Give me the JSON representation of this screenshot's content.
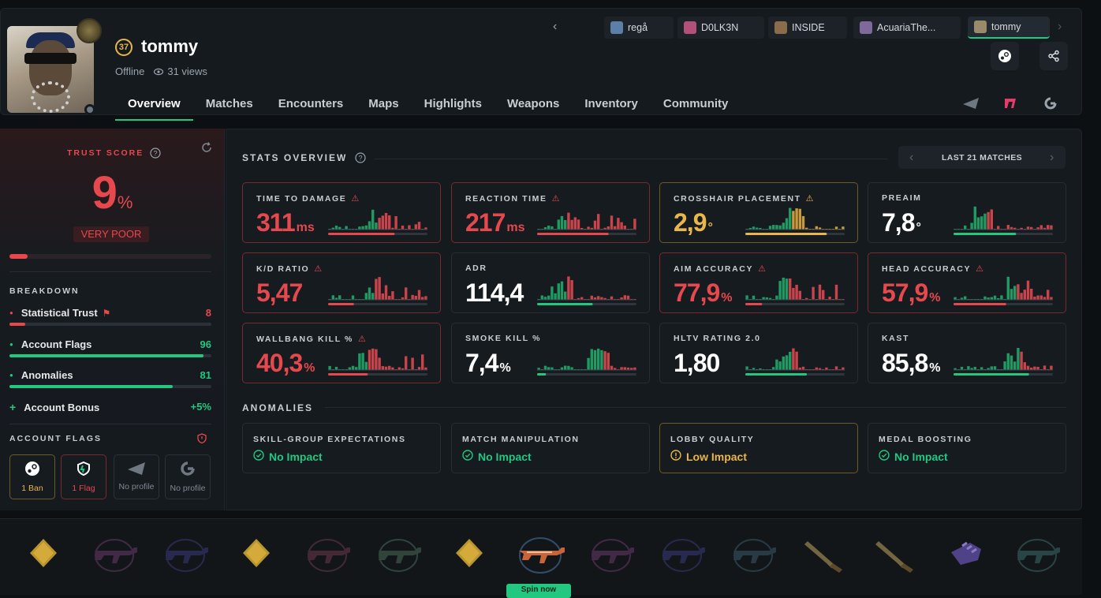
{
  "profile": {
    "name": "tommy",
    "level": "37",
    "status": "Offline",
    "views": "31 views"
  },
  "recent_profiles": [
    {
      "name": "regå",
      "color": "#5b7fa6"
    },
    {
      "name": "D0LK3N",
      "color": "#b2507a"
    },
    {
      "name": "INSIDE",
      "color": "#8a6b4a"
    },
    {
      "name": "AcuariaThe...",
      "color": "#7d6a9a"
    },
    {
      "name": "tommy",
      "color": "#9a8a6a"
    }
  ],
  "tabs": [
    "Overview",
    "Matches",
    "Encounters",
    "Maps",
    "Highlights",
    "Weapons",
    "Inventory",
    "Community"
  ],
  "active_tab": "Overview",
  "trust": {
    "label": "TRUST SCORE",
    "value": "9",
    "unit": "%",
    "rating": "VERY POOR",
    "fill_fraction": 0.09
  },
  "breakdown": {
    "title": "BREAKDOWN",
    "items": [
      {
        "label": "Statistical Trust",
        "value": "8",
        "fraction": 0.08,
        "color": "#e5484d",
        "flag": true
      },
      {
        "label": "Account Flags",
        "value": "96",
        "fraction": 0.96,
        "color": "#22c780"
      },
      {
        "label": "Anomalies",
        "value": "81",
        "fraction": 0.81,
        "color": "#22c780"
      },
      {
        "label": "Account Bonus",
        "value": "+5%",
        "color": "#22c780"
      }
    ]
  },
  "account_flags": {
    "title": "ACCOUNT FLAGS",
    "items": [
      {
        "label": "1 Ban",
        "icon": "steam-icon",
        "color": "#e8b64a",
        "border": "#6f5a24"
      },
      {
        "label": "1 Flag",
        "icon": "faceit-shield-icon",
        "color": "#e5484d",
        "border": "#7a2a2e"
      },
      {
        "label": "No profile",
        "icon": "esea-icon",
        "color": "#7f8891",
        "border": "#2a3239"
      },
      {
        "label": "No profile",
        "icon": "renown-icon",
        "color": "#7f8891",
        "border": "#2a3239"
      }
    ]
  },
  "stats": {
    "title": "STATS OVERVIEW",
    "range": "LAST 21 MATCHES",
    "cards": [
      {
        "label": "TIME TO DAMAGE",
        "value": "311",
        "unit": "ms",
        "color": "#e5484d",
        "state": "red",
        "warn": true,
        "bar": 0.67
      },
      {
        "label": "REACTION TIME",
        "value": "217",
        "unit": "ms",
        "color": "#e5484d",
        "state": "red",
        "warn": true,
        "bar": 0.72
      },
      {
        "label": "CROSSHAIR PLACEMENT",
        "value": "2,9",
        "unit": "°",
        "color": "#e8b64a",
        "state": "yellow",
        "warn": true,
        "bar": 0.82
      },
      {
        "label": "PREAIM",
        "value": "7,8",
        "unit": "°",
        "color": "#ffffff",
        "state": "normal",
        "warn": false,
        "bar": 0.63
      },
      {
        "label": "K/D RATIO",
        "value": "5,47",
        "unit": "",
        "color": "#e5484d",
        "state": "red",
        "warn": true,
        "bar": 0.26
      },
      {
        "label": "ADR",
        "value": "114,4",
        "unit": "",
        "color": "#ffffff",
        "state": "normal",
        "warn": false,
        "bar": 0.56
      },
      {
        "label": "AIM ACCURACY",
        "value": "77,9",
        "unit": "%",
        "color": "#e5484d",
        "state": "red",
        "warn": true,
        "bar": 0.17
      },
      {
        "label": "HEAD ACCURACY",
        "value": "57,9",
        "unit": "%",
        "color": "#e5484d",
        "state": "red",
        "warn": true,
        "bar": 0.53
      },
      {
        "label": "WALLBANG KILL %",
        "value": "40,3",
        "unit": "%",
        "color": "#e5484d",
        "state": "red",
        "warn": true,
        "bar": 0.4
      },
      {
        "label": "SMOKE KILL %",
        "value": "7,4",
        "unit": "%",
        "color": "#ffffff",
        "state": "normal",
        "warn": false,
        "bar": 0.09
      },
      {
        "label": "HLTV RATING 2.0",
        "value": "1,80",
        "unit": "",
        "color": "#ffffff",
        "state": "normal",
        "warn": false,
        "bar": 0.62
      },
      {
        "label": "KAST",
        "value": "85,8",
        "unit": "%",
        "color": "#ffffff",
        "state": "normal",
        "warn": false,
        "bar": 0.76
      }
    ]
  },
  "anomalies": {
    "title": "ANOMALIES",
    "items": [
      {
        "label": "SKILL-GROUP EXPECTATIONS",
        "value": "No Impact",
        "color": "#22c780",
        "state": "normal"
      },
      {
        "label": "MATCH MANIPULATION",
        "value": "No Impact",
        "color": "#22c780",
        "state": "normal"
      },
      {
        "label": "LOBBY QUALITY",
        "value": "Low Impact",
        "color": "#e8b64a",
        "state": "yellow"
      },
      {
        "label": "MEDAL BOOSTING",
        "value": "No Impact",
        "color": "#22c780",
        "state": "normal"
      }
    ]
  },
  "footer": {
    "spin_label": "Spin now"
  },
  "colors": {
    "accent": "#22c780",
    "danger": "#e5484d",
    "warning": "#e8b64a"
  }
}
